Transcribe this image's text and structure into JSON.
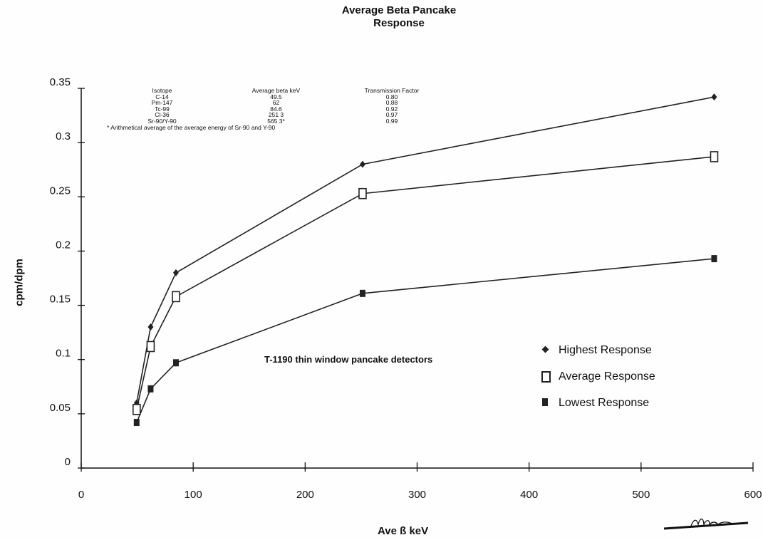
{
  "chart_data": {
    "type": "line",
    "title": "Average Beta Pancake Response",
    "xlabel": "Ave ß keV",
    "ylabel": "cpm/dpm",
    "xlim": [
      0,
      600
    ],
    "ylim": [
      0,
      0.35
    ],
    "x_ticks": [
      "0",
      "100",
      "200",
      "300",
      "400",
      "500",
      "600"
    ],
    "y_ticks": [
      "0",
      "0.05",
      "0.1",
      "0.15",
      "0.2",
      "0.25",
      "0.3",
      "0.35"
    ],
    "grid": false,
    "legend_position": "right",
    "series": [
      {
        "name": "Highest Response",
        "marker": "diamond",
        "x": [
          49.5,
          62,
          84.6,
          251.3,
          565.3
        ],
        "values": [
          0.06,
          0.13,
          0.18,
          0.28,
          0.342
        ]
      },
      {
        "name": "Average Response",
        "marker": "square-open",
        "x": [
          49.5,
          62,
          84.6,
          251.3,
          565.3
        ],
        "values": [
          0.054,
          0.112,
          0.158,
          0.253,
          0.287
        ]
      },
      {
        "name": "Lowest Response",
        "marker": "square-filled",
        "x": [
          49.5,
          62,
          84.6,
          251.3,
          565.3
        ],
        "values": [
          0.042,
          0.073,
          0.097,
          0.161,
          0.193
        ]
      }
    ],
    "annotation": "T-1190 thin window pancake detectors",
    "table": {
      "headers": [
        "Isotope",
        "Average beta keV",
        "Transmission Factor"
      ],
      "rows": [
        [
          "C-14",
          "49.5",
          "0.80"
        ],
        [
          "Pm-147",
          "62",
          "0.88"
        ],
        [
          "Tc-99",
          "84.6",
          "0.92"
        ],
        [
          "Cl-36",
          "251 3",
          "0.97"
        ],
        [
          "Sr-90/Y-90",
          "565 3*",
          "0.99"
        ]
      ],
      "footnote": "* Arithmetical average of the average energy of Sr-90 and Y-90"
    }
  }
}
